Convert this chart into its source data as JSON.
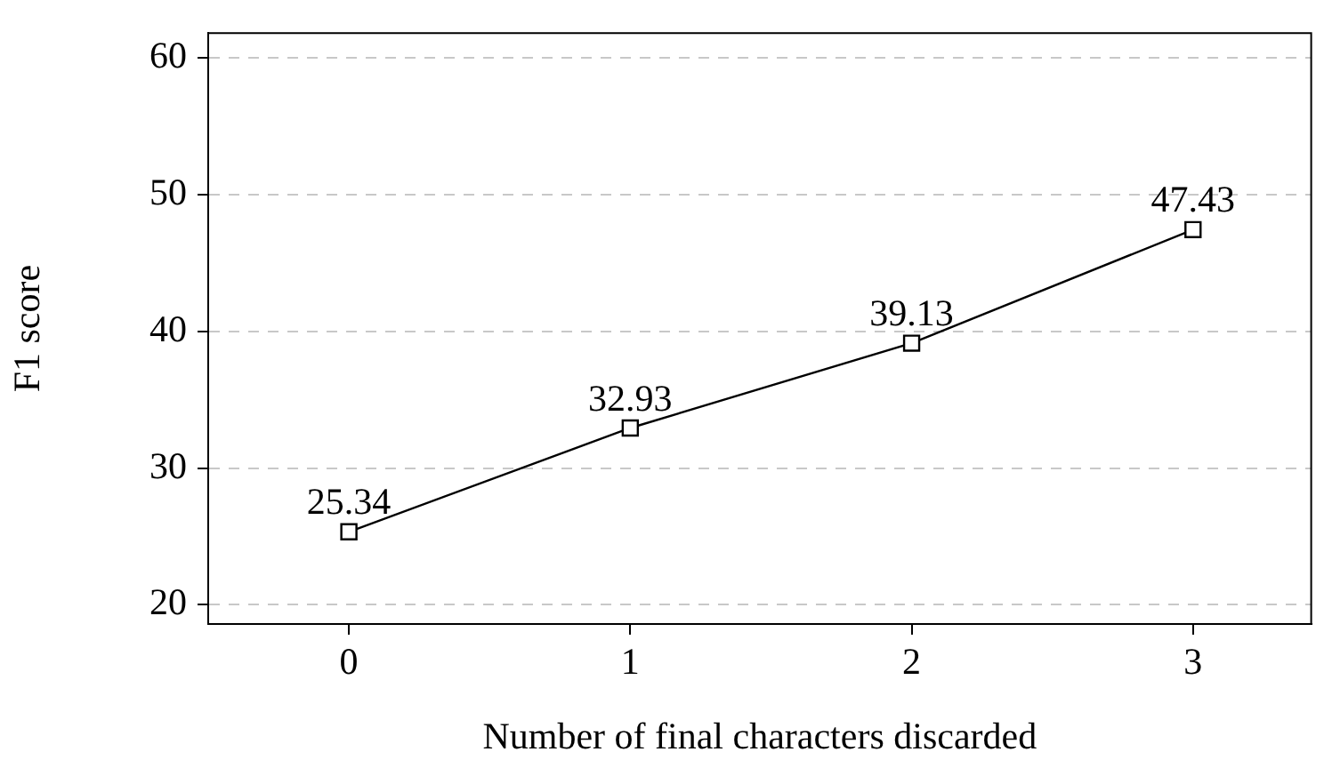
{
  "chart_data": {
    "type": "line",
    "xlabel": "Number of final characters discarded",
    "ylabel": "F1 score",
    "x": [
      0,
      1,
      2,
      3
    ],
    "series": [
      {
        "color": "#000000",
        "values": [
          25.34,
          32.93,
          39.13,
          47.43
        ]
      }
    ],
    "xlim": [
      -0.5,
      3.42
    ],
    "ylim": [
      18.6,
      61.8
    ],
    "xticks": [
      0,
      1,
      2,
      3
    ],
    "yticks": [
      20,
      30,
      40,
      50,
      60
    ],
    "grid": "y",
    "legend": false,
    "marker": "square",
    "line_style": "solid",
    "data_labels": true
  }
}
